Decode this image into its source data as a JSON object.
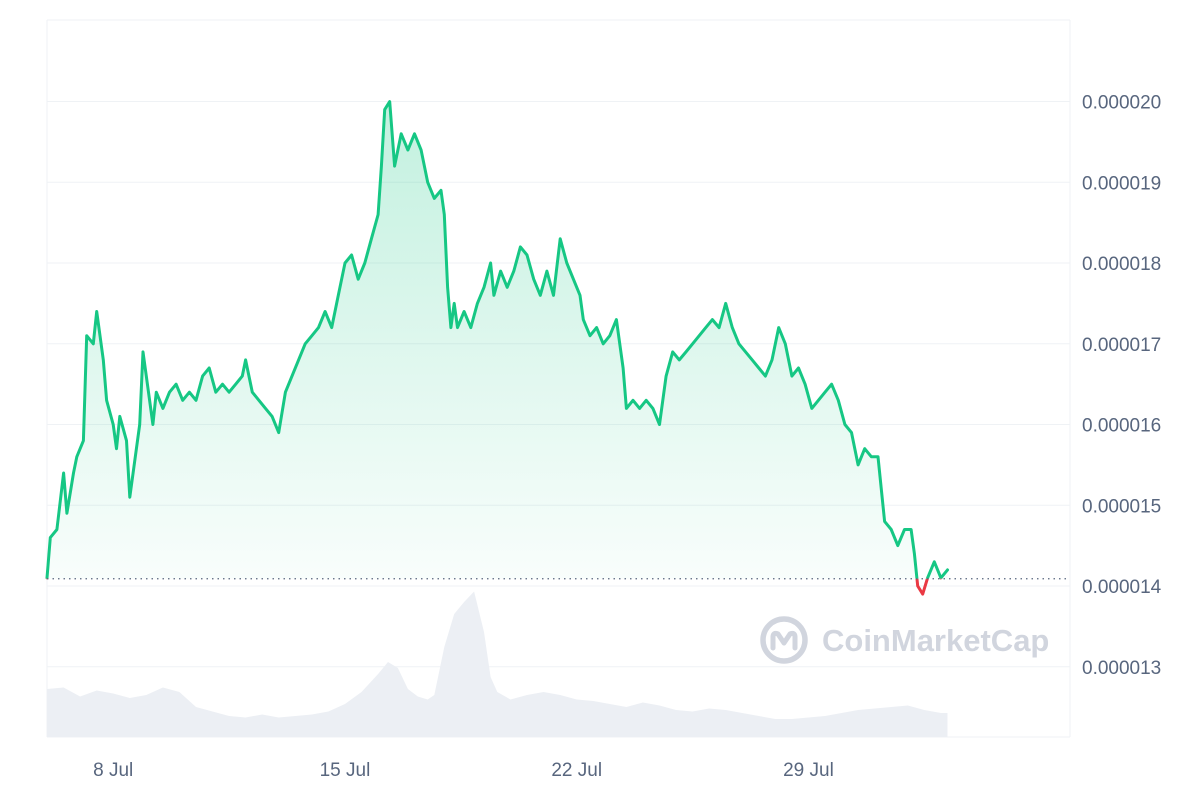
{
  "chart_data": {
    "type": "line",
    "watermark": "CoinMarketCap",
    "baseline_value": 1.409e-05,
    "y_ticks": [
      "0.000013",
      "0.000014",
      "0.000015",
      "0.000016",
      "0.000017",
      "0.000018",
      "0.000019",
      "0.000020"
    ],
    "x_ticks": [
      "8 Jul",
      "15 Jul",
      "22 Jul",
      "29 Jul"
    ],
    "x_tick_positions": [
      8,
      15,
      22,
      29
    ],
    "xlim": [
      6.0,
      36.9
    ],
    "ylim": [
      1.213e-05,
      2.101e-05
    ],
    "grid": true,
    "colors": {
      "up": "#16c784",
      "down": "#ea3943",
      "volume": "#eceff4",
      "grid": "#eff2f5"
    },
    "series": [
      {
        "values": [
          [
            6.0,
            1.41e-05
          ],
          [
            6.1,
            1.46e-05
          ],
          [
            6.3,
            1.47e-05
          ],
          [
            6.5,
            1.54e-05
          ],
          [
            6.6,
            1.49e-05
          ],
          [
            6.8,
            1.54e-05
          ],
          [
            6.9,
            1.56e-05
          ],
          [
            7.1,
            1.58e-05
          ],
          [
            7.2,
            1.71e-05
          ],
          [
            7.4,
            1.7e-05
          ],
          [
            7.5,
            1.74e-05
          ],
          [
            7.7,
            1.68e-05
          ],
          [
            7.8,
            1.63e-05
          ],
          [
            8.0,
            1.6e-05
          ],
          [
            8.1,
            1.57e-05
          ],
          [
            8.2,
            1.61e-05
          ],
          [
            8.4,
            1.58e-05
          ],
          [
            8.5,
            1.51e-05
          ],
          [
            8.7,
            1.57e-05
          ],
          [
            8.8,
            1.6e-05
          ],
          [
            8.9,
            1.69e-05
          ],
          [
            9.0,
            1.66e-05
          ],
          [
            9.2,
            1.6e-05
          ],
          [
            9.3,
            1.64e-05
          ],
          [
            9.5,
            1.62e-05
          ],
          [
            9.7,
            1.64e-05
          ],
          [
            9.9,
            1.65e-05
          ],
          [
            10.1,
            1.63e-05
          ],
          [
            10.3,
            1.64e-05
          ],
          [
            10.5,
            1.63e-05
          ],
          [
            10.7,
            1.66e-05
          ],
          [
            10.9,
            1.67e-05
          ],
          [
            11.1,
            1.64e-05
          ],
          [
            11.3,
            1.65e-05
          ],
          [
            11.5,
            1.64e-05
          ],
          [
            11.7,
            1.65e-05
          ],
          [
            11.9,
            1.66e-05
          ],
          [
            12.0,
            1.68e-05
          ],
          [
            12.2,
            1.64e-05
          ],
          [
            12.4,
            1.63e-05
          ],
          [
            12.6,
            1.62e-05
          ],
          [
            12.8,
            1.61e-05
          ],
          [
            13.0,
            1.59e-05
          ],
          [
            13.2,
            1.64e-05
          ],
          [
            13.4,
            1.66e-05
          ],
          [
            13.6,
            1.68e-05
          ],
          [
            13.8,
            1.7e-05
          ],
          [
            14.0,
            1.71e-05
          ],
          [
            14.2,
            1.72e-05
          ],
          [
            14.4,
            1.74e-05
          ],
          [
            14.6,
            1.72e-05
          ],
          [
            14.8,
            1.76e-05
          ],
          [
            15.0,
            1.8e-05
          ],
          [
            15.2,
            1.81e-05
          ],
          [
            15.4,
            1.78e-05
          ],
          [
            15.6,
            1.8e-05
          ],
          [
            15.8,
            1.83e-05
          ],
          [
            16.0,
            1.86e-05
          ],
          [
            16.1,
            1.92e-05
          ],
          [
            16.2,
            1.99e-05
          ],
          [
            16.35,
            2e-05
          ],
          [
            16.5,
            1.92e-05
          ],
          [
            16.7,
            1.96e-05
          ],
          [
            16.9,
            1.94e-05
          ],
          [
            17.1,
            1.96e-05
          ],
          [
            17.3,
            1.94e-05
          ],
          [
            17.5,
            1.9e-05
          ],
          [
            17.7,
            1.88e-05
          ],
          [
            17.9,
            1.89e-05
          ],
          [
            18.0,
            1.86e-05
          ],
          [
            18.1,
            1.77e-05
          ],
          [
            18.2,
            1.72e-05
          ],
          [
            18.3,
            1.75e-05
          ],
          [
            18.4,
            1.72e-05
          ],
          [
            18.6,
            1.74e-05
          ],
          [
            18.8,
            1.72e-05
          ],
          [
            19.0,
            1.75e-05
          ],
          [
            19.2,
            1.77e-05
          ],
          [
            19.4,
            1.8e-05
          ],
          [
            19.5,
            1.76e-05
          ],
          [
            19.7,
            1.79e-05
          ],
          [
            19.9,
            1.77e-05
          ],
          [
            20.1,
            1.79e-05
          ],
          [
            20.3,
            1.82e-05
          ],
          [
            20.5,
            1.81e-05
          ],
          [
            20.7,
            1.78e-05
          ],
          [
            20.9,
            1.76e-05
          ],
          [
            21.1,
            1.79e-05
          ],
          [
            21.3,
            1.76e-05
          ],
          [
            21.5,
            1.83e-05
          ],
          [
            21.7,
            1.8e-05
          ],
          [
            21.9,
            1.78e-05
          ],
          [
            22.1,
            1.76e-05
          ],
          [
            22.2,
            1.73e-05
          ],
          [
            22.4,
            1.71e-05
          ],
          [
            22.6,
            1.72e-05
          ],
          [
            22.8,
            1.7e-05
          ],
          [
            23.0,
            1.71e-05
          ],
          [
            23.2,
            1.73e-05
          ],
          [
            23.4,
            1.67e-05
          ],
          [
            23.5,
            1.62e-05
          ],
          [
            23.7,
            1.63e-05
          ],
          [
            23.9,
            1.62e-05
          ],
          [
            24.1,
            1.63e-05
          ],
          [
            24.3,
            1.62e-05
          ],
          [
            24.5,
            1.6e-05
          ],
          [
            24.7,
            1.66e-05
          ],
          [
            24.9,
            1.69e-05
          ],
          [
            25.1,
            1.68e-05
          ],
          [
            25.3,
            1.69e-05
          ],
          [
            25.5,
            1.7e-05
          ],
          [
            25.7,
            1.71e-05
          ],
          [
            25.9,
            1.72e-05
          ],
          [
            26.1,
            1.73e-05
          ],
          [
            26.3,
            1.72e-05
          ],
          [
            26.5,
            1.75e-05
          ],
          [
            26.7,
            1.72e-05
          ],
          [
            26.9,
            1.7e-05
          ],
          [
            27.1,
            1.69e-05
          ],
          [
            27.3,
            1.68e-05
          ],
          [
            27.5,
            1.67e-05
          ],
          [
            27.7,
            1.66e-05
          ],
          [
            27.9,
            1.68e-05
          ],
          [
            28.1,
            1.72e-05
          ],
          [
            28.3,
            1.7e-05
          ],
          [
            28.5,
            1.66e-05
          ],
          [
            28.7,
            1.67e-05
          ],
          [
            28.9,
            1.65e-05
          ],
          [
            29.1,
            1.62e-05
          ],
          [
            29.3,
            1.63e-05
          ],
          [
            29.5,
            1.64e-05
          ],
          [
            29.7,
            1.65e-05
          ],
          [
            29.9,
            1.63e-05
          ],
          [
            30.1,
            1.6e-05
          ],
          [
            30.3,
            1.59e-05
          ],
          [
            30.5,
            1.55e-05
          ],
          [
            30.7,
            1.57e-05
          ],
          [
            30.9,
            1.56e-05
          ],
          [
            31.1,
            1.56e-05
          ],
          [
            31.3,
            1.48e-05
          ],
          [
            31.5,
            1.47e-05
          ],
          [
            31.7,
            1.45e-05
          ],
          [
            31.9,
            1.47e-05
          ],
          [
            32.1,
            1.47e-05
          ],
          [
            32.2,
            1.44e-05
          ],
          [
            32.3,
            1.4e-05
          ],
          [
            32.45,
            1.39e-05
          ],
          [
            32.6,
            1.41e-05
          ],
          [
            32.8,
            1.43e-05
          ],
          [
            33.0,
            1.41e-05
          ],
          [
            33.2,
            1.42e-05
          ]
        ]
      }
    ],
    "volume": [
      [
        6.0,
        0.32
      ],
      [
        6.5,
        0.33
      ],
      [
        7.0,
        0.27
      ],
      [
        7.5,
        0.31
      ],
      [
        8.0,
        0.29
      ],
      [
        8.5,
        0.26
      ],
      [
        9.0,
        0.28
      ],
      [
        9.5,
        0.33
      ],
      [
        10.0,
        0.3
      ],
      [
        10.5,
        0.2
      ],
      [
        11.0,
        0.17
      ],
      [
        11.5,
        0.14
      ],
      [
        12.0,
        0.13
      ],
      [
        12.5,
        0.15
      ],
      [
        13.0,
        0.13
      ],
      [
        13.5,
        0.14
      ],
      [
        14.0,
        0.15
      ],
      [
        14.5,
        0.17
      ],
      [
        15.0,
        0.22
      ],
      [
        15.5,
        0.3
      ],
      [
        16.0,
        0.42
      ],
      [
        16.3,
        0.5
      ],
      [
        16.6,
        0.46
      ],
      [
        16.9,
        0.32
      ],
      [
        17.2,
        0.27
      ],
      [
        17.5,
        0.25
      ],
      [
        17.7,
        0.28
      ],
      [
        18.0,
        0.6
      ],
      [
        18.3,
        0.82
      ],
      [
        18.6,
        0.9
      ],
      [
        18.9,
        0.97
      ],
      [
        19.2,
        0.7
      ],
      [
        19.4,
        0.4
      ],
      [
        19.6,
        0.3
      ],
      [
        20.0,
        0.25
      ],
      [
        20.5,
        0.28
      ],
      [
        21.0,
        0.3
      ],
      [
        21.5,
        0.28
      ],
      [
        22.0,
        0.25
      ],
      [
        22.5,
        0.24
      ],
      [
        23.0,
        0.22
      ],
      [
        23.5,
        0.2
      ],
      [
        24.0,
        0.23
      ],
      [
        24.5,
        0.21
      ],
      [
        25.0,
        0.18
      ],
      [
        25.5,
        0.17
      ],
      [
        26.0,
        0.19
      ],
      [
        26.5,
        0.18
      ],
      [
        27.0,
        0.16
      ],
      [
        27.5,
        0.14
      ],
      [
        28.0,
        0.12
      ],
      [
        28.5,
        0.12
      ],
      [
        29.0,
        0.13
      ],
      [
        29.5,
        0.14
      ],
      [
        30.0,
        0.16
      ],
      [
        30.5,
        0.18
      ],
      [
        31.0,
        0.19
      ],
      [
        31.5,
        0.2
      ],
      [
        32.0,
        0.21
      ],
      [
        32.5,
        0.18
      ],
      [
        33.0,
        0.16
      ],
      [
        33.2,
        0.16
      ]
    ]
  }
}
